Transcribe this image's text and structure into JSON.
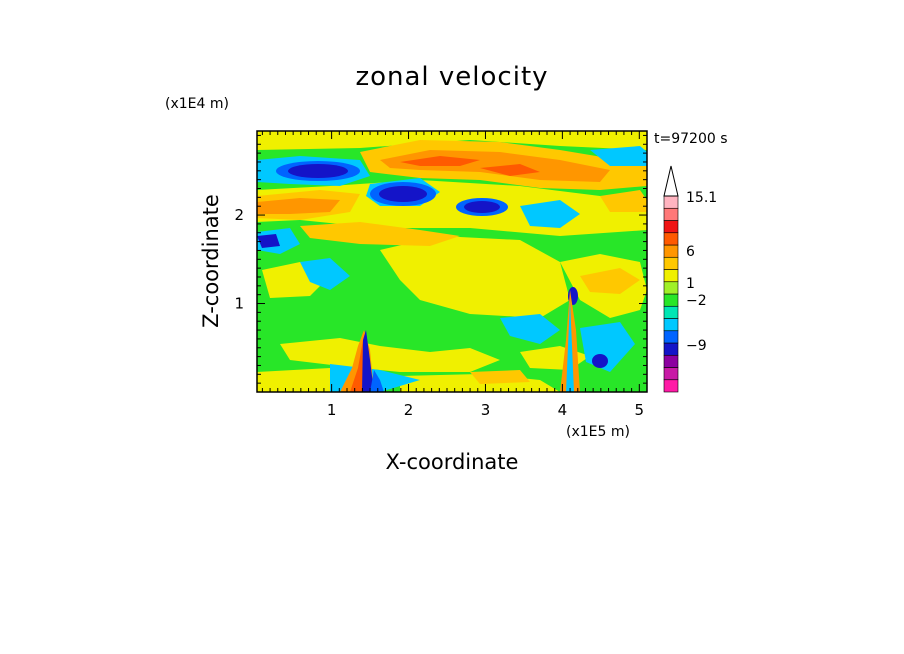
{
  "chart_data": {
    "type": "heatmap",
    "title": "zonal velocity",
    "xlabel": "X-coordinate",
    "ylabel": "Z-coordinate",
    "x_unit": "(x1E5 m)",
    "y_unit": "(x1E4 m)",
    "time_label": "t=97200 s",
    "xlim": [
      0.03,
      5.1
    ],
    "ylim": [
      0.0,
      2.95
    ],
    "x_ticks": [
      "1",
      "2",
      "3",
      "4",
      "5"
    ],
    "y_ticks": [
      "1",
      "2"
    ],
    "colorbar": {
      "labels": [
        "15.1",
        "6",
        "1",
        "−2",
        "−9"
      ],
      "colors": [
        "#ff1aa6",
        "#c81aa6",
        "#8c00a0",
        "#1414c8",
        "#0064ff",
        "#00c8ff",
        "#00e6b4",
        "#28e628",
        "#a0f028",
        "#f0f000",
        "#ffc800",
        "#ff9600",
        "#ff5a00",
        "#f01414",
        "#ff7878",
        "#ffb4c0"
      ]
    },
    "field_description": "Filled contour of zonal velocity; banded jets aloft (red/orange positive, blue negative), mountain-wave features near x=1.4 and x=4.1"
  }
}
